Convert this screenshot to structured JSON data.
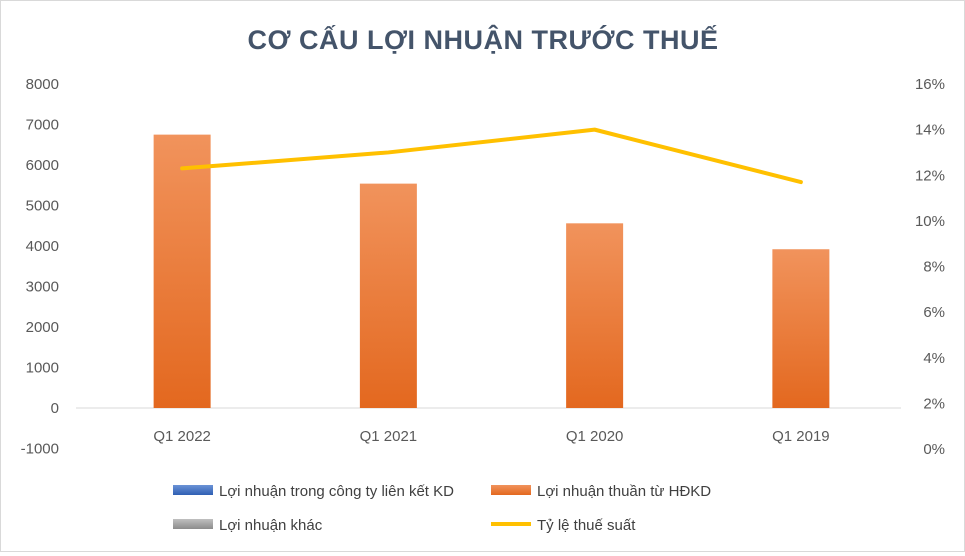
{
  "chart_data": {
    "type": "bar",
    "title": "CƠ CẤU LỢI NHUẬN TRƯỚC THUẾ",
    "categories": [
      "Q1 2022",
      "Q1 2021",
      "Q1 2020",
      "Q1 2019"
    ],
    "y_left": {
      "min": -1000,
      "max": 8000,
      "step": 1000,
      "tick_labels": [
        "8000",
        "7000",
        "6000",
        "5000",
        "4000",
        "3000",
        "2000",
        "1000",
        "0",
        "-1000"
      ]
    },
    "y_right": {
      "min": 0,
      "max": 0.16,
      "step": 0.02,
      "tick_labels": [
        "16%",
        "14%",
        "12%",
        "10%",
        "8%",
        "6%",
        "4%",
        "2%",
        "0%"
      ]
    },
    "grid": false,
    "legend_position": "bottom",
    "series": [
      {
        "name": "Lợi nhuận trong công ty liên kết KD",
        "type": "bar",
        "axis": "left",
        "color": "#4472c4",
        "values": [
          0,
          0,
          0,
          0
        ]
      },
      {
        "name": "Lợi nhuận thuần từ HĐKD",
        "type": "bar",
        "axis": "left",
        "color": "#ed7d31",
        "values": [
          6750,
          5540,
          4560,
          3920
        ]
      },
      {
        "name": "Lợi nhuận khác",
        "type": "bar",
        "axis": "left",
        "color": "#a5a5a5",
        "values": [
          0,
          0,
          0,
          0
        ]
      },
      {
        "name": "Tỷ lệ thuế suất",
        "type": "line",
        "axis": "right",
        "color": "#ffc000",
        "values": [
          0.123,
          0.13,
          0.14,
          0.117
        ]
      }
    ]
  }
}
